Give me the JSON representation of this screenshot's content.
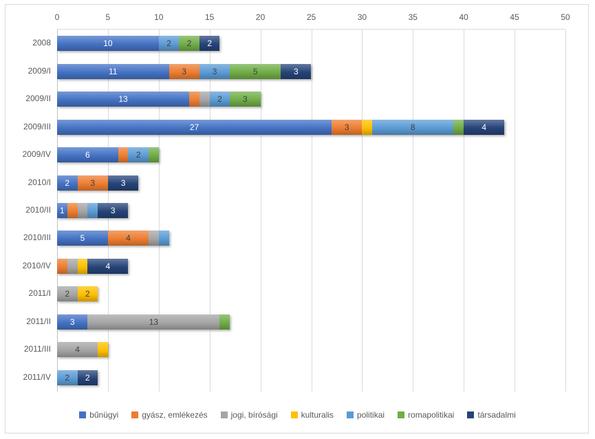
{
  "styles": {
    "background": "#FFFFFF",
    "frame_border": "#D9D9D9",
    "grid_color": "#D9D9D9",
    "axis_line_color": "#BFBFBF",
    "axis_text_color": "#595959",
    "label_on_dark": "#FFFFFF",
    "label_on_light": "#404040"
  },
  "chart_data": {
    "type": "bar",
    "orientation": "horizontal",
    "stacked": true,
    "title": "",
    "x_axis": {
      "position": "top",
      "min": 0,
      "max": 50,
      "tick_interval": 5,
      "ticks": [
        0,
        5,
        10,
        15,
        20,
        25,
        30,
        35,
        40,
        45,
        50
      ]
    },
    "categories": [
      "2008",
      "2009/I",
      "2009/II",
      "2009/III",
      "2009/IV",
      "2010/I",
      "2010/II",
      "2010/III",
      "2010/IV",
      "2011/I",
      "2011/II",
      "2011/III",
      "2011/IV"
    ],
    "series": [
      {
        "name": "bűnügyi",
        "color": "#4472C4",
        "label_color": "#FFFFFF"
      },
      {
        "name": "gyász, emlékezés",
        "color": "#ED7D31",
        "label_color": "#404040"
      },
      {
        "name": "jogi, bírósági",
        "color": "#A5A5A5",
        "label_color": "#404040"
      },
      {
        "name": "kulturalis",
        "color": "#FFC000",
        "label_color": "#404040"
      },
      {
        "name": "politikai",
        "color": "#5B9BD5",
        "label_color": "#404040"
      },
      {
        "name": "romapolitikai",
        "color": "#70AD47",
        "label_color": "#404040"
      },
      {
        "name": "társadalmi",
        "color": "#264478",
        "label_color": "#FFFFFF"
      }
    ],
    "rows": [
      {
        "category": "2008",
        "segments": [
          {
            "series": "bűnügyi",
            "value": 10,
            "label": "10"
          },
          {
            "series": "politikai",
            "value": 2,
            "label": "2"
          },
          {
            "series": "romapolitikai",
            "value": 2,
            "label": "2"
          },
          {
            "series": "társadalmi",
            "value": 2,
            "label": "2"
          }
        ]
      },
      {
        "category": "2009/I",
        "segments": [
          {
            "series": "bűnügyi",
            "value": 11,
            "label": "11"
          },
          {
            "series": "gyász, emlékezés",
            "value": 3,
            "label": "3"
          },
          {
            "series": "politikai",
            "value": 3,
            "label": "3"
          },
          {
            "series": "romapolitikai",
            "value": 5,
            "label": "5"
          },
          {
            "series": "társadalmi",
            "value": 3,
            "label": "3"
          }
        ]
      },
      {
        "category": "2009/II",
        "segments": [
          {
            "series": "bűnügyi",
            "value": 13,
            "label": "13"
          },
          {
            "series": "gyász, emlékezés",
            "value": 1,
            "label": ""
          },
          {
            "series": "jogi, bírósági",
            "value": 1,
            "label": ""
          },
          {
            "series": "politikai",
            "value": 2,
            "label": "2"
          },
          {
            "series": "romapolitikai",
            "value": 3,
            "label": "3"
          }
        ]
      },
      {
        "category": "2009/III",
        "segments": [
          {
            "series": "bűnügyi",
            "value": 27,
            "label": "27"
          },
          {
            "series": "gyász, emlékezés",
            "value": 3,
            "label": "3"
          },
          {
            "series": "kulturalis",
            "value": 1,
            "label": ""
          },
          {
            "series": "politikai",
            "value": 8,
            "label": "8"
          },
          {
            "series": "romapolitikai",
            "value": 1,
            "label": ""
          },
          {
            "series": "társadalmi",
            "value": 4,
            "label": "4"
          }
        ]
      },
      {
        "category": "2009/IV",
        "segments": [
          {
            "series": "bűnügyi",
            "value": 6,
            "label": "6"
          },
          {
            "series": "gyász, emlékezés",
            "value": 1,
            "label": ""
          },
          {
            "series": "politikai",
            "value": 2,
            "label": "2"
          },
          {
            "series": "romapolitikai",
            "value": 1,
            "label": ""
          }
        ]
      },
      {
        "category": "2010/I",
        "segments": [
          {
            "series": "bűnügyi",
            "value": 2,
            "label": "2"
          },
          {
            "series": "gyász, emlékezés",
            "value": 3,
            "label": "3"
          },
          {
            "series": "társadalmi",
            "value": 3,
            "label": "3"
          }
        ]
      },
      {
        "category": "2010/II",
        "segments": [
          {
            "series": "bűnügyi",
            "value": 1,
            "label": "1"
          },
          {
            "series": "gyász, emlékezés",
            "value": 1,
            "label": ""
          },
          {
            "series": "jogi, bírósági",
            "value": 1,
            "label": ""
          },
          {
            "series": "politikai",
            "value": 1,
            "label": ""
          },
          {
            "series": "társadalmi",
            "value": 3,
            "label": "3"
          }
        ]
      },
      {
        "category": "2010/III",
        "segments": [
          {
            "series": "bűnügyi",
            "value": 5,
            "label": "5"
          },
          {
            "series": "gyász, emlékezés",
            "value": 4,
            "label": "4"
          },
          {
            "series": "jogi, bírósági",
            "value": 1,
            "label": ""
          },
          {
            "series": "politikai",
            "value": 1,
            "label": ""
          }
        ]
      },
      {
        "category": "2010/IV",
        "segments": [
          {
            "series": "gyász, emlékezés",
            "value": 1,
            "label": ""
          },
          {
            "series": "jogi, bírósági",
            "value": 1,
            "label": ""
          },
          {
            "series": "kulturalis",
            "value": 1,
            "label": ""
          },
          {
            "series": "társadalmi",
            "value": 4,
            "label": "4"
          }
        ]
      },
      {
        "category": "2011/I",
        "segments": [
          {
            "series": "jogi, bírósági",
            "value": 2,
            "label": "2"
          },
          {
            "series": "kulturalis",
            "value": 2,
            "label": "2"
          }
        ]
      },
      {
        "category": "2011/II",
        "segments": [
          {
            "series": "bűnügyi",
            "value": 3,
            "label": "3"
          },
          {
            "series": "jogi, bírósági",
            "value": 13,
            "label": "13"
          },
          {
            "series": "romapolitikai",
            "value": 1,
            "label": ""
          }
        ]
      },
      {
        "category": "2011/III",
        "segments": [
          {
            "series": "jogi, bírósági",
            "value": 4,
            "label": "4"
          },
          {
            "series": "kulturalis",
            "value": 1,
            "label": ""
          }
        ]
      },
      {
        "category": "2011/IV",
        "segments": [
          {
            "series": "politikai",
            "value": 2,
            "label": "2"
          },
          {
            "series": "társadalmi",
            "value": 2,
            "label": "2"
          }
        ]
      }
    ],
    "legend": {
      "position": "bottom",
      "items": [
        "bűnügyi",
        "gyász, emlékezés",
        "jogi, bírósági",
        "kulturalis",
        "politikai",
        "romapolitikai",
        "társadalmi"
      ]
    }
  }
}
